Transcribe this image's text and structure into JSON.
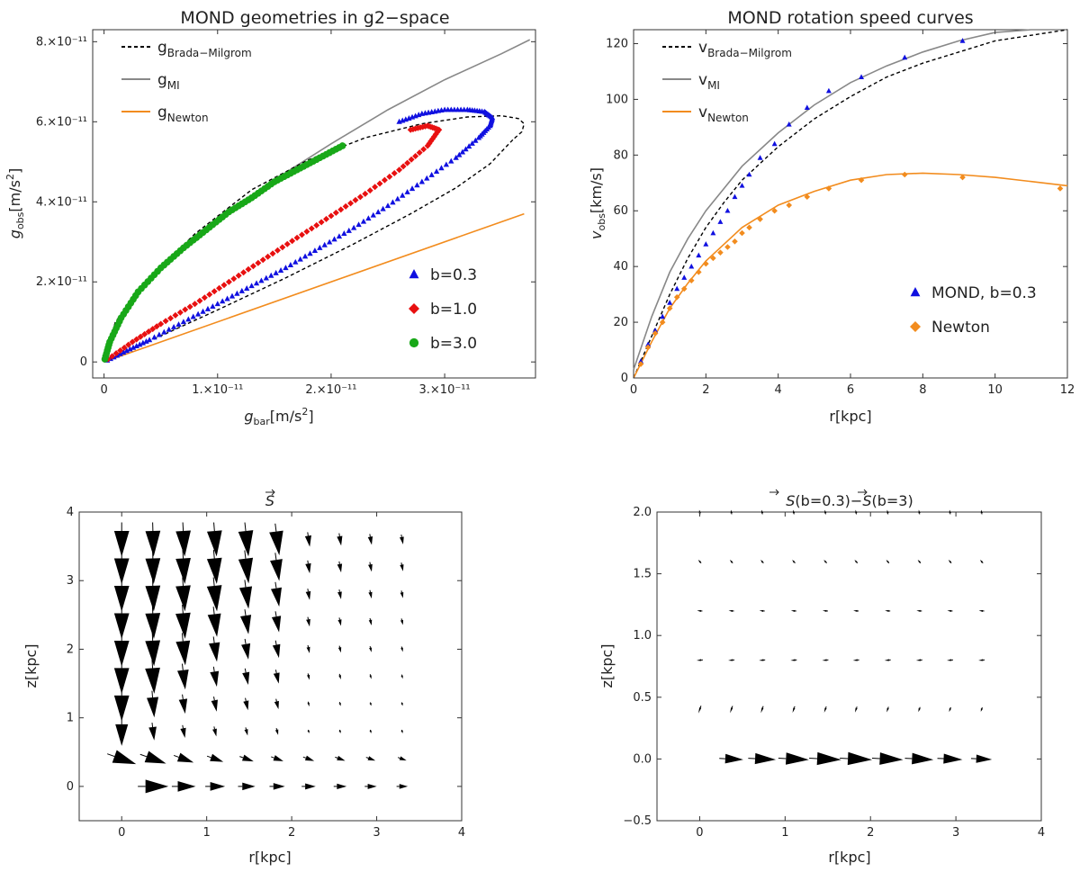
{
  "chart_data": [
    {
      "type": "scatter",
      "title": "MOND geometries in g2−space",
      "xlabel": "g",
      "xlabel_sub": "bar",
      "xlabel_unit": "[m/s",
      "ylabel": "g",
      "ylabel_sub": "obs",
      "ylabel_unit": "[m/s",
      "xlim": [
        -1e-12,
        3.8e-11
      ],
      "ylim": [
        -4e-12,
        8.3e-11
      ],
      "xticks": [
        "0",
        "1.×10⁻¹¹",
        "2.×10⁻¹¹",
        "3.×10⁻¹¹"
      ],
      "xtick_values": [
        0,
        1e-11,
        2e-11,
        3e-11
      ],
      "yticks": [
        "0",
        "2.×10⁻¹¹",
        "4.×10⁻¹¹",
        "6.×10⁻¹¹",
        "8.×10⁻¹¹"
      ],
      "ytick_values": [
        0,
        2e-11,
        4e-11,
        6e-11,
        8e-11
      ],
      "line_legend": [
        {
          "name": "g",
          "sub": "Brada−Milgrom",
          "style": "dashed",
          "color": "#000000"
        },
        {
          "name": "g",
          "sub": "MI",
          "style": "solid",
          "color": "#888888"
        },
        {
          "name": "g",
          "sub": "Newton",
          "style": "solid",
          "color": "#f28c1e"
        }
      ],
      "marker_legend": [
        {
          "name": "b=0.3",
          "marker": "triangle",
          "color": "#1010e0"
        },
        {
          "name": "b=1.0",
          "marker": "diamond",
          "color": "#e81010"
        },
        {
          "name": "b=3.0",
          "marker": "circle",
          "color": "#18a818"
        }
      ],
      "legend_position": "lines top-left, markers bottom-right",
      "curves": {
        "mi_x": [
          0,
          2e-13,
          1e-12,
          3e-12,
          6e-12,
          1e-11,
          1.5e-11,
          2e-11,
          2.5e-11,
          3e-11,
          3.5e-11,
          3.75e-11
        ],
        "mi_y": [
          0,
          3.6e-12,
          9e-12,
          1.7e-11,
          2.6e-11,
          3.55e-11,
          4.55e-11,
          5.45e-11,
          6.3e-11,
          7.05e-11,
          7.7e-11,
          8.05e-11
        ],
        "newton_x": [
          0,
          3.7e-11
        ],
        "newton_y": [
          0,
          3.7e-11
        ],
        "bm_outer_x": [
          0,
          1e-12,
          4e-12,
          8e-12,
          1.3e-11,
          1.8e-11,
          2.3e-11,
          2.8e-11,
          3.2e-11,
          3.5e-11,
          3.65e-11,
          3.7e-11,
          3.68e-11,
          3.6e-11
        ],
        "bm_outer_y": [
          0,
          1e-11,
          2.1e-11,
          3.2e-11,
          4.3e-11,
          5.05e-11,
          5.6e-11,
          5.95e-11,
          6.12e-11,
          6.15e-11,
          6.08e-11,
          5.95e-11,
          5.75e-11,
          5.55e-11
        ],
        "bm_inner_x": [
          3.6e-11,
          3.4e-11,
          3.1e-11,
          2.7e-11,
          2.2e-11,
          1.6e-11,
          1e-11,
          5e-12,
          2e-12,
          0
        ],
        "bm_inner_y": [
          5.55e-11,
          4.95e-11,
          4.35e-11,
          3.7e-11,
          2.95e-11,
          2.1e-11,
          1.3e-11,
          6.5e-12,
          2.6e-12,
          0
        ]
      },
      "series": [
        {
          "name": "b=0.3",
          "points": [
            [
              2.6e-11,
              6e-11
            ],
            [
              2.8e-11,
              6.2e-11
            ],
            [
              3e-11,
              6.3e-11
            ],
            [
              3.2e-11,
              6.3e-11
            ],
            [
              3.35e-11,
              6.25e-11
            ],
            [
              3.42e-11,
              6.1e-11
            ],
            [
              3.4e-11,
              5.9e-11
            ],
            [
              3.3e-11,
              5.6e-11
            ],
            [
              3.1e-11,
              5.1e-11
            ],
            [
              2.8e-11,
              4.5e-11
            ],
            [
              2.5e-11,
              3.9e-11
            ],
            [
              2.2e-11,
              3.35e-11
            ],
            [
              1.9e-11,
              2.85e-11
            ],
            [
              1.6e-11,
              2.35e-11
            ],
            [
              1.3e-11,
              1.9e-11
            ],
            [
              1e-11,
              1.45e-11
            ],
            [
              7e-12,
              1e-11
            ],
            [
              4e-12,
              5.5e-12
            ],
            [
              2e-12,
              2.8e-12
            ],
            [
              0,
              0
            ]
          ]
        },
        {
          "name": "b=1.0",
          "points": [
            [
              2.7e-11,
              5.8e-11
            ],
            [
              2.85e-11,
              5.9e-11
            ],
            [
              2.95e-11,
              5.8e-11
            ],
            [
              2.85e-11,
              5.4e-11
            ],
            [
              2.6e-11,
              4.8e-11
            ],
            [
              2.3e-11,
              4.2e-11
            ],
            [
              2e-11,
              3.65e-11
            ],
            [
              1.7e-11,
              3.1e-11
            ],
            [
              1.4e-11,
              2.55e-11
            ],
            [
              1.1e-11,
              2e-11
            ],
            [
              8e-12,
              1.45e-11
            ],
            [
              5e-12,
              9.5e-12
            ],
            [
              2.5e-12,
              5e-12
            ],
            [
              0,
              0
            ]
          ]
        },
        {
          "name": "b=3.0",
          "points": [
            [
              2.1e-11,
              5.4e-11
            ],
            [
              1.9e-11,
              5.1e-11
            ],
            [
              1.7e-11,
              4.8e-11
            ],
            [
              1.5e-11,
              4.5e-11
            ],
            [
              1.3e-11,
              4.1e-11
            ],
            [
              1.1e-11,
              3.75e-11
            ],
            [
              9e-12,
              3.3e-11
            ],
            [
              7e-12,
              2.85e-11
            ],
            [
              5e-12,
              2.35e-11
            ],
            [
              3e-12,
              1.75e-11
            ],
            [
              1.5e-12,
              1.1e-11
            ],
            [
              5e-13,
              5e-12
            ],
            [
              0,
              0
            ]
          ]
        }
      ]
    },
    {
      "type": "line",
      "title": "MOND rotation speed curves",
      "xlabel": "r[kpc]",
      "ylabel": "v",
      "ylabel_sub": "obs",
      "ylabel_unit": "[km/s]",
      "xlim": [
        0,
        12
      ],
      "ylim": [
        0,
        125
      ],
      "xticks": [
        "0",
        "2",
        "4",
        "6",
        "8",
        "10",
        "12"
      ],
      "xtick_values": [
        0,
        2,
        4,
        6,
        8,
        10,
        12
      ],
      "yticks": [
        "0",
        "20",
        "40",
        "60",
        "80",
        "100",
        "120"
      ],
      "ytick_values": [
        0,
        20,
        40,
        60,
        80,
        100,
        120
      ],
      "line_legend": [
        {
          "name": "v",
          "sub": "Brada−Milgrom",
          "style": "dashed",
          "color": "#000000"
        },
        {
          "name": "v",
          "sub": "MI",
          "style": "solid",
          "color": "#888888"
        },
        {
          "name": "v",
          "sub": "Newton",
          "style": "solid",
          "color": "#f28c1e"
        }
      ],
      "marker_legend": [
        {
          "name": "MOND, b=0.3",
          "marker": "triangle",
          "color": "#1010e0"
        },
        {
          "name": "Newton",
          "marker": "diamond",
          "color": "#f28c1e"
        }
      ],
      "legend_position": "lines top-left, markers bottom-right",
      "curves": {
        "bm_x": [
          0,
          0.5,
          1,
          1.5,
          2,
          2.5,
          3,
          4,
          5,
          6,
          7,
          8,
          9,
          10,
          11,
          12
        ],
        "bm_y": [
          0,
          15,
          30,
          43,
          54,
          63,
          71,
          83,
          93,
          101,
          108,
          113,
          117,
          121,
          123,
          125
        ],
        "mi_x": [
          0,
          0.5,
          1,
          1.5,
          2,
          2.5,
          3,
          4,
          5,
          6,
          7,
          8,
          9,
          10,
          11,
          12
        ],
        "mi_y": [
          3,
          22,
          38,
          50,
          60,
          68,
          76,
          88,
          98,
          106,
          112,
          117,
          121,
          124,
          126,
          128
        ],
        "newton_x": [
          0,
          0.5,
          1,
          1.5,
          2,
          2.5,
          3,
          4,
          5,
          6,
          7,
          8,
          9,
          10,
          11,
          12
        ],
        "newton_y": [
          0,
          13,
          25,
          34,
          42,
          48,
          54,
          62,
          67,
          71,
          73,
          73.5,
          73,
          72,
          70.5,
          69
        ]
      },
      "series": [
        {
          "name": "MOND, b=0.3",
          "x": [
            0.2,
            0.4,
            0.6,
            0.8,
            1.0,
            1.2,
            1.4,
            1.6,
            1.8,
            2.0,
            2.2,
            2.4,
            2.6,
            2.8,
            3.0,
            3.2,
            3.5,
            3.9,
            4.3,
            4.8,
            5.4,
            6.3,
            7.5,
            9.1
          ],
          "y": [
            6,
            12,
            17,
            22,
            27,
            32,
            36,
            40,
            44,
            48,
            52,
            56,
            60,
            65,
            69,
            73,
            79,
            84,
            91,
            97,
            103,
            108,
            115,
            121
          ]
        },
        {
          "name": "Newton",
          "x": [
            0.2,
            0.4,
            0.6,
            0.8,
            1.0,
            1.2,
            1.4,
            1.6,
            1.8,
            2.0,
            2.2,
            2.4,
            2.6,
            2.8,
            3.0,
            3.2,
            3.5,
            3.9,
            4.3,
            4.8,
            5.4,
            6.3,
            7.5,
            9.1,
            11.8
          ],
          "y": [
            5,
            11,
            16,
            20,
            25,
            29,
            32,
            35,
            38,
            41,
            43,
            45,
            47,
            49,
            52,
            54,
            57,
            60,
            62,
            65,
            68,
            71,
            73,
            72,
            68
          ]
        }
      ]
    },
    {
      "type": "vector",
      "title": "S",
      "xlabel": "r[kpc]",
      "ylabel": "z[kpc]",
      "xlim": [
        -0.5,
        4
      ],
      "ylim": [
        -0.5,
        4
      ],
      "xticks": [
        "0",
        "1",
        "2",
        "3",
        "4"
      ],
      "xtick_values": [
        0,
        1,
        2,
        3,
        4
      ],
      "yticks": [
        "0",
        "1",
        "2",
        "3",
        "4"
      ],
      "ytick_values": [
        0,
        1,
        2,
        3,
        4
      ],
      "grid_x": [
        0,
        0.37,
        0.73,
        1.1,
        1.47,
        1.83,
        2.2,
        2.57,
        2.93,
        3.3
      ],
      "grid_y": [
        0,
        0.4,
        0.8,
        1.2,
        1.6,
        2.0,
        2.4,
        2.8,
        3.2,
        3.6
      ]
    },
    {
      "type": "vector",
      "title": "S(b=0.3)−S(b=3)",
      "title_parts": [
        "S",
        "(b=0.3)−",
        "S",
        "(b=3)"
      ],
      "xlabel": "r[kpc]",
      "ylabel": "z[kpc]",
      "xlim": [
        -0.5,
        4
      ],
      "ylim": [
        -0.5,
        2
      ],
      "xticks": [
        "0",
        "1",
        "2",
        "3",
        "4"
      ],
      "xtick_values": [
        0,
        1,
        2,
        3,
        4
      ],
      "yticks": [
        "−0.5",
        "0.0",
        "0.5",
        "1.0",
        "1.5",
        "2.0"
      ],
      "ytick_values": [
        -0.5,
        0,
        0.5,
        1.0,
        1.5,
        2.0
      ],
      "grid_x": [
        0,
        0.37,
        0.73,
        1.1,
        1.47,
        1.83,
        2.2,
        2.57,
        2.93,
        3.3
      ],
      "grid_y": [
        0,
        0.4,
        0.8,
        1.2,
        1.6,
        2.0
      ]
    }
  ]
}
